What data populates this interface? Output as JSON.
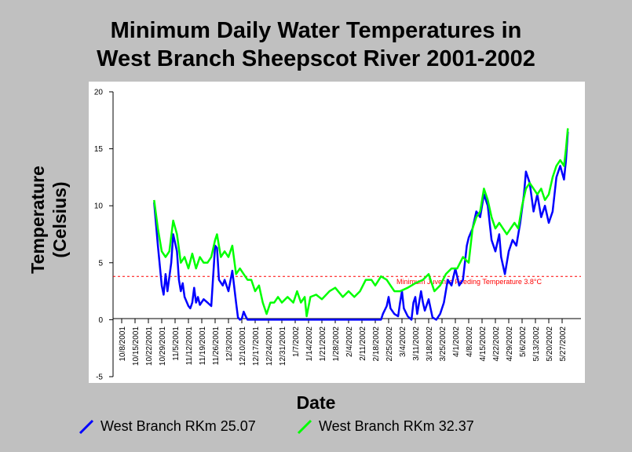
{
  "chart_data": {
    "type": "line",
    "title_lines": [
      "Minimum Daily Water Temperatures in",
      "West Branch Sheepscot River 2001-2002"
    ],
    "xlabel": "Date",
    "ylabel_lines": [
      "Temperature",
      "(Celsius)"
    ],
    "ylim": [
      -5,
      20
    ],
    "yticks": [
      -5,
      0,
      5,
      10,
      15,
      20
    ],
    "x_tick_labels": [
      "10/8/2001",
      "10/15/2001",
      "10/22/2001",
      "10/29/2001",
      "11/5/2001",
      "11/12/2001",
      "11/19/2001",
      "11/26/2001",
      "12/3/2001",
      "12/10/2001",
      "12/17/2001",
      "12/24/2001",
      "12/31/2001",
      "1/7/2002",
      "1/14/2002",
      "1/21/2002",
      "1/28/2002",
      "2/4/2002",
      "2/11/2002",
      "2/18/2002",
      "2/25/2002",
      "3/4/2002",
      "3/11/2002",
      "3/18/2002",
      "3/25/2002",
      "4/1/2002",
      "4/8/2002",
      "4/15/2002",
      "4/22/2002",
      "4/29/2002",
      "5/6/2002",
      "5/13/2002",
      "5/20/2002",
      "5/27/2002"
    ],
    "reference_line": {
      "value": 3.8,
      "label": "Minimum Juvenile Feeding Temperature 3.8°C",
      "color": "#ff0000"
    },
    "series": [
      {
        "name": "West Branch RKm 25.07",
        "color": "#0000ff",
        "points": [
          [
            "10/25/2001",
            10.3
          ],
          [
            "10/27/2001",
            6.5
          ],
          [
            "10/29/2001",
            3.0
          ],
          [
            "10/30/2001",
            2.2
          ],
          [
            "10/31/2001",
            4.0
          ],
          [
            "11/1/2001",
            2.5
          ],
          [
            "11/3/2001",
            5.0
          ],
          [
            "11/4/2001",
            7.5
          ],
          [
            "11/6/2001",
            6.0
          ],
          [
            "11/7/2001",
            3.5
          ],
          [
            "11/8/2001",
            2.5
          ],
          [
            "11/9/2001",
            3.2
          ],
          [
            "11/10/2001",
            2.0
          ],
          [
            "11/12/2001",
            1.2
          ],
          [
            "11/13/2001",
            1.0
          ],
          [
            "11/14/2001",
            1.5
          ],
          [
            "11/15/2001",
            2.8
          ],
          [
            "11/16/2001",
            1.5
          ],
          [
            "11/17/2001",
            2.0
          ],
          [
            "11/18/2001",
            1.3
          ],
          [
            "11/20/2001",
            1.8
          ],
          [
            "11/22/2001",
            1.5
          ],
          [
            "11/24/2001",
            1.2
          ],
          [
            "11/26/2001",
            6.5
          ],
          [
            "11/27/2001",
            6.3
          ],
          [
            "11/28/2001",
            3.5
          ],
          [
            "11/30/2001",
            3.0
          ],
          [
            "12/1/2001",
            3.5
          ],
          [
            "12/3/2001",
            2.5
          ],
          [
            "12/5/2001",
            4.3
          ],
          [
            "12/7/2001",
            1.5
          ],
          [
            "12/8/2001",
            0.2
          ],
          [
            "12/9/2001",
            0.0
          ],
          [
            "12/10/2001",
            0.1
          ],
          [
            "12/11/2001",
            0.7
          ],
          [
            "12/12/2001",
            0.3
          ],
          [
            "12/13/2001",
            0.0
          ],
          [
            "12/31/2001",
            0.0
          ],
          [
            "1/20/2002",
            0.0
          ],
          [
            "2/21/2002",
            0.0
          ],
          [
            "2/22/2002",
            0.5
          ],
          [
            "2/24/2002",
            1.2
          ],
          [
            "2/25/2002",
            2.0
          ],
          [
            "2/26/2002",
            1.0
          ],
          [
            "2/28/2002",
            0.5
          ],
          [
            "3/2/2002",
            0.3
          ],
          [
            "3/3/2002",
            1.5
          ],
          [
            "3/4/2002",
            2.5
          ],
          [
            "3/5/2002",
            1.0
          ],
          [
            "3/7/2002",
            0.3
          ],
          [
            "3/9/2002",
            0.0
          ],
          [
            "3/10/2002",
            1.5
          ],
          [
            "3/11/2002",
            2.0
          ],
          [
            "3/12/2002",
            0.5
          ],
          [
            "3/14/2002",
            2.5
          ],
          [
            "3/15/2002",
            1.5
          ],
          [
            "3/16/2002",
            0.8
          ],
          [
            "3/18/2002",
            1.8
          ],
          [
            "3/19/2002",
            1.0
          ],
          [
            "3/20/2002",
            0.2
          ],
          [
            "3/22/2002",
            0.0
          ],
          [
            "3/24/2002",
            0.5
          ],
          [
            "3/26/2002",
            1.5
          ],
          [
            "3/28/2002",
            3.5
          ],
          [
            "3/30/2002",
            3.0
          ],
          [
            "4/1/2002",
            4.5
          ],
          [
            "4/3/2002",
            3.0
          ],
          [
            "4/5/2002",
            3.5
          ],
          [
            "4/7/2002",
            6.5
          ],
          [
            "4/8/2002",
            7.2
          ],
          [
            "4/10/2002",
            8.0
          ],
          [
            "4/12/2002",
            9.5
          ],
          [
            "4/14/2002",
            9.0
          ],
          [
            "4/16/2002",
            11.0
          ],
          [
            "4/18/2002",
            10.0
          ],
          [
            "4/20/2002",
            7.0
          ],
          [
            "4/22/2002",
            6.0
          ],
          [
            "4/24/2002",
            7.5
          ],
          [
            "4/25/2002",
            5.5
          ],
          [
            "4/27/2002",
            4.0
          ],
          [
            "4/29/2002",
            6.0
          ],
          [
            "5/1/2002",
            7.0
          ],
          [
            "5/3/2002",
            6.5
          ],
          [
            "5/5/2002",
            8.5
          ],
          [
            "5/7/2002",
            11.0
          ],
          [
            "5/8/2002",
            13.0
          ],
          [
            "5/10/2002",
            12.0
          ],
          [
            "5/12/2002",
            9.5
          ],
          [
            "5/14/2002",
            11.0
          ],
          [
            "5/16/2002",
            9.0
          ],
          [
            "5/18/2002",
            10.0
          ],
          [
            "5/20/2002",
            8.5
          ],
          [
            "5/22/2002",
            9.5
          ],
          [
            "5/24/2002",
            12.5
          ],
          [
            "5/26/2002",
            13.5
          ],
          [
            "5/28/2002",
            12.3
          ],
          [
            "5/29/2002",
            14.0
          ],
          [
            "5/30/2002",
            16.5
          ]
        ]
      },
      {
        "name": "West Branch RKm 32.37",
        "color": "#00ff00",
        "points": [
          [
            "10/25/2001",
            10.5
          ],
          [
            "10/27/2001",
            8.0
          ],
          [
            "10/29/2001",
            6.0
          ],
          [
            "10/31/2001",
            5.5
          ],
          [
            "11/2/2001",
            6.0
          ],
          [
            "11/4/2001",
            8.7
          ],
          [
            "11/6/2001",
            7.5
          ],
          [
            "11/8/2001",
            5.0
          ],
          [
            "11/10/2001",
            5.5
          ],
          [
            "11/12/2001",
            4.5
          ],
          [
            "11/14/2001",
            5.8
          ],
          [
            "11/16/2001",
            4.5
          ],
          [
            "11/18/2001",
            5.5
          ],
          [
            "11/20/2001",
            5.0
          ],
          [
            "11/22/2001",
            5.0
          ],
          [
            "11/24/2001",
            5.5
          ],
          [
            "11/26/2001",
            7.0
          ],
          [
            "11/27/2001",
            7.5
          ],
          [
            "11/29/2001",
            5.5
          ],
          [
            "12/1/2001",
            6.0
          ],
          [
            "12/3/2001",
            5.5
          ],
          [
            "12/5/2001",
            6.5
          ],
          [
            "12/7/2001",
            4.0
          ],
          [
            "12/9/2001",
            4.5
          ],
          [
            "12/11/2001",
            4.0
          ],
          [
            "12/13/2001",
            3.5
          ],
          [
            "12/15/2001",
            3.5
          ],
          [
            "12/17/2001",
            2.5
          ],
          [
            "12/19/2001",
            3.0
          ],
          [
            "12/21/2001",
            1.5
          ],
          [
            "12/23/2001",
            0.5
          ],
          [
            "12/25/2001",
            1.5
          ],
          [
            "12/27/2001",
            1.5
          ],
          [
            "12/29/2001",
            2.0
          ],
          [
            "12/31/2001",
            1.5
          ],
          [
            "1/3/2002",
            2.0
          ],
          [
            "1/6/2002",
            1.5
          ],
          [
            "1/8/2002",
            2.5
          ],
          [
            "1/10/2002",
            1.5
          ],
          [
            "1/12/2002",
            2.0
          ],
          [
            "1/13/2002",
            0.3
          ],
          [
            "1/15/2002",
            2.0
          ],
          [
            "1/18/2002",
            2.2
          ],
          [
            "1/21/2002",
            1.8
          ],
          [
            "1/25/2002",
            2.5
          ],
          [
            "1/28/2002",
            2.8
          ],
          [
            "2/1/2002",
            2.0
          ],
          [
            "2/4/2002",
            2.5
          ],
          [
            "2/7/2002",
            2.0
          ],
          [
            "2/10/2002",
            2.5
          ],
          [
            "2/13/2002",
            3.5
          ],
          [
            "2/16/2002",
            3.5
          ],
          [
            "2/18/2002",
            3.0
          ],
          [
            "2/21/2002",
            3.8
          ],
          [
            "2/24/2002",
            3.5
          ],
          [
            "2/26/2002",
            3.0
          ],
          [
            "2/28/2002",
            2.5
          ],
          [
            "3/3/2002",
            2.5
          ],
          [
            "3/7/2002",
            2.8
          ],
          [
            "3/11/2002",
            3.2
          ],
          [
            "3/15/2002",
            3.5
          ],
          [
            "3/18/2002",
            4.0
          ],
          [
            "3/21/2002",
            2.5
          ],
          [
            "3/24/2002",
            3.0
          ],
          [
            "3/27/2002",
            4.0
          ],
          [
            "3/30/2002",
            4.5
          ],
          [
            "4/2/2002",
            4.5
          ],
          [
            "4/5/2002",
            5.5
          ],
          [
            "4/8/2002",
            5.0
          ],
          [
            "4/10/2002",
            8.0
          ],
          [
            "4/12/2002",
            9.0
          ],
          [
            "4/14/2002",
            9.5
          ],
          [
            "4/16/2002",
            11.5
          ],
          [
            "4/18/2002",
            10.5
          ],
          [
            "4/20/2002",
            9.0
          ],
          [
            "4/22/2002",
            8.0
          ],
          [
            "4/24/2002",
            8.5
          ],
          [
            "4/26/2002",
            8.0
          ],
          [
            "4/28/2002",
            7.5
          ],
          [
            "4/30/2002",
            8.0
          ],
          [
            "5/2/2002",
            8.5
          ],
          [
            "5/4/2002",
            8.0
          ],
          [
            "5/6/2002",
            10.0
          ],
          [
            "5/8/2002",
            11.5
          ],
          [
            "5/10/2002",
            12.0
          ],
          [
            "5/12/2002",
            11.5
          ],
          [
            "5/14/2002",
            11.0
          ],
          [
            "5/16/2002",
            11.5
          ],
          [
            "5/18/2002",
            10.5
          ],
          [
            "5/20/2002",
            11.0
          ],
          [
            "5/22/2002",
            12.5
          ],
          [
            "5/24/2002",
            13.5
          ],
          [
            "5/26/2002",
            14.0
          ],
          [
            "5/28/2002",
            13.5
          ],
          [
            "5/29/2002",
            15.0
          ],
          [
            "5/30/2002",
            16.8
          ]
        ]
      }
    ]
  }
}
